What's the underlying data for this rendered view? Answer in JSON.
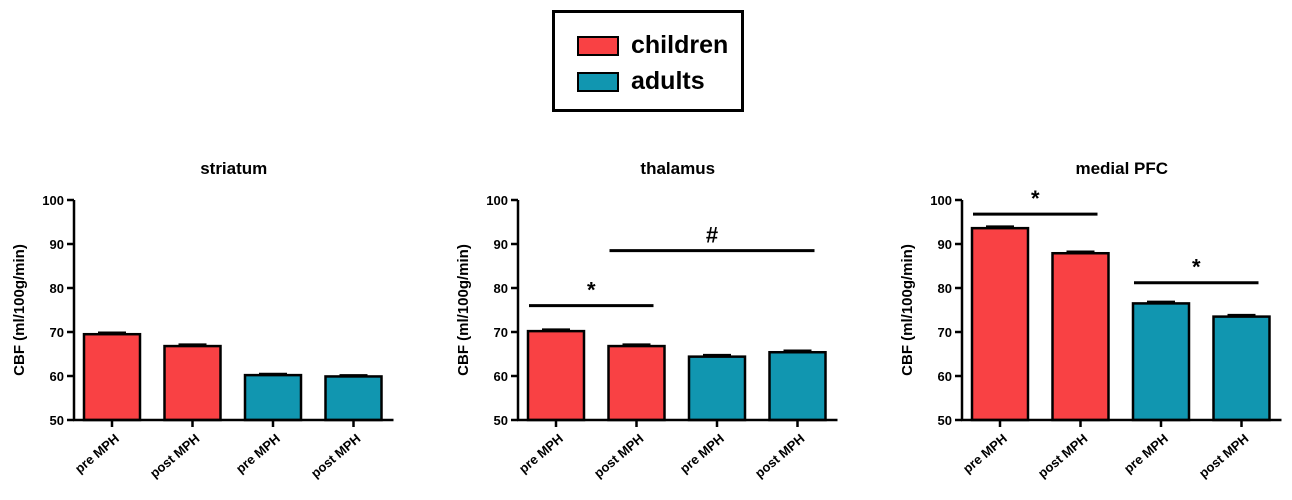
{
  "legend": {
    "position": "top-center",
    "items": [
      {
        "label": "children",
        "color": "#f94144"
      },
      {
        "label": "adults",
        "color": "#1196b0"
      }
    ]
  },
  "chart_data": [
    {
      "type": "bar",
      "title": "striatum",
      "xlabel": "",
      "ylabel": "CBF (ml/100g/min)",
      "ylim": [
        50,
        100
      ],
      "yticks": [
        "50",
        "60",
        "70",
        "80",
        "90",
        "100"
      ],
      "categories": [
        "pre MPH",
        "post MPH",
        "pre MPH",
        "post MPH"
      ],
      "groups": [
        "children",
        "children",
        "adults",
        "adults"
      ],
      "values": [
        69.5,
        66.8,
        60.2,
        59.9
      ],
      "errors": [
        0.4,
        0.4,
        0.3,
        0.3
      ],
      "significance": []
    },
    {
      "type": "bar",
      "title": "thalamus",
      "xlabel": "",
      "ylabel": "CBF (ml/100g/min)",
      "ylim": [
        50,
        100
      ],
      "yticks": [
        "50",
        "60",
        "70",
        "80",
        "90",
        "100"
      ],
      "categories": [
        "pre MPH",
        "post MPH",
        "pre MPH",
        "post MPH"
      ],
      "groups": [
        "children",
        "children",
        "adults",
        "adults"
      ],
      "values": [
        70.2,
        66.8,
        64.4,
        65.4
      ],
      "errors": [
        0.4,
        0.4,
        0.4,
        0.4
      ],
      "significance": [
        {
          "from": 0,
          "to": 1,
          "y": 76,
          "label": "*"
        },
        {
          "from": 1,
          "to": 3,
          "y": 88.5,
          "label": "#"
        }
      ]
    },
    {
      "type": "bar",
      "title": "medial PFC",
      "xlabel": "",
      "ylabel": "CBF (ml/100g/min)",
      "ylim": [
        50,
        100
      ],
      "yticks": [
        "50",
        "60",
        "70",
        "80",
        "90",
        "100"
      ],
      "categories": [
        "pre MPH",
        "post MPH",
        "pre MPH",
        "post MPH"
      ],
      "groups": [
        "children",
        "children",
        "adults",
        "adults"
      ],
      "values": [
        93.6,
        87.9,
        76.5,
        73.5
      ],
      "errors": [
        0.4,
        0.4,
        0.4,
        0.4
      ],
      "significance": [
        {
          "from": 0,
          "to": 1,
          "y": 96.8,
          "label": "*"
        },
        {
          "from": 2,
          "to": 3,
          "y": 81.2,
          "label": "*"
        }
      ]
    }
  ]
}
